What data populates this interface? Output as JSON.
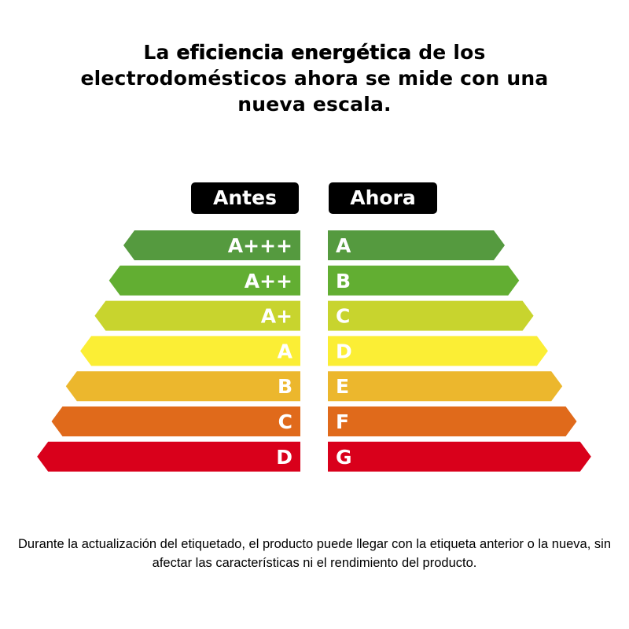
{
  "title": {
    "part1": "La ",
    "emphasis": "eficiencia energética",
    "part2": " de los electrodomésticos ahora se mide con una nueva escala."
  },
  "headers": {
    "before": "Antes",
    "now": "Ahora"
  },
  "scale": {
    "before_labels": [
      "A+++",
      "A++",
      "A+",
      "A",
      "B",
      "C",
      "D"
    ],
    "now_labels": [
      "A",
      "B",
      "C",
      "D",
      "E",
      "F",
      "G"
    ],
    "colors": [
      "#559a3f",
      "#62ae32",
      "#c8d42e",
      "#fbee35",
      "#ecb72d",
      "#e06a1b",
      "#d9001b"
    ]
  },
  "footer": "Durante la actualización del etiquetado, el producto puede llegar con la etiqueta anterior o la nueva, sin afectar las características ni el rendimiento del producto."
}
